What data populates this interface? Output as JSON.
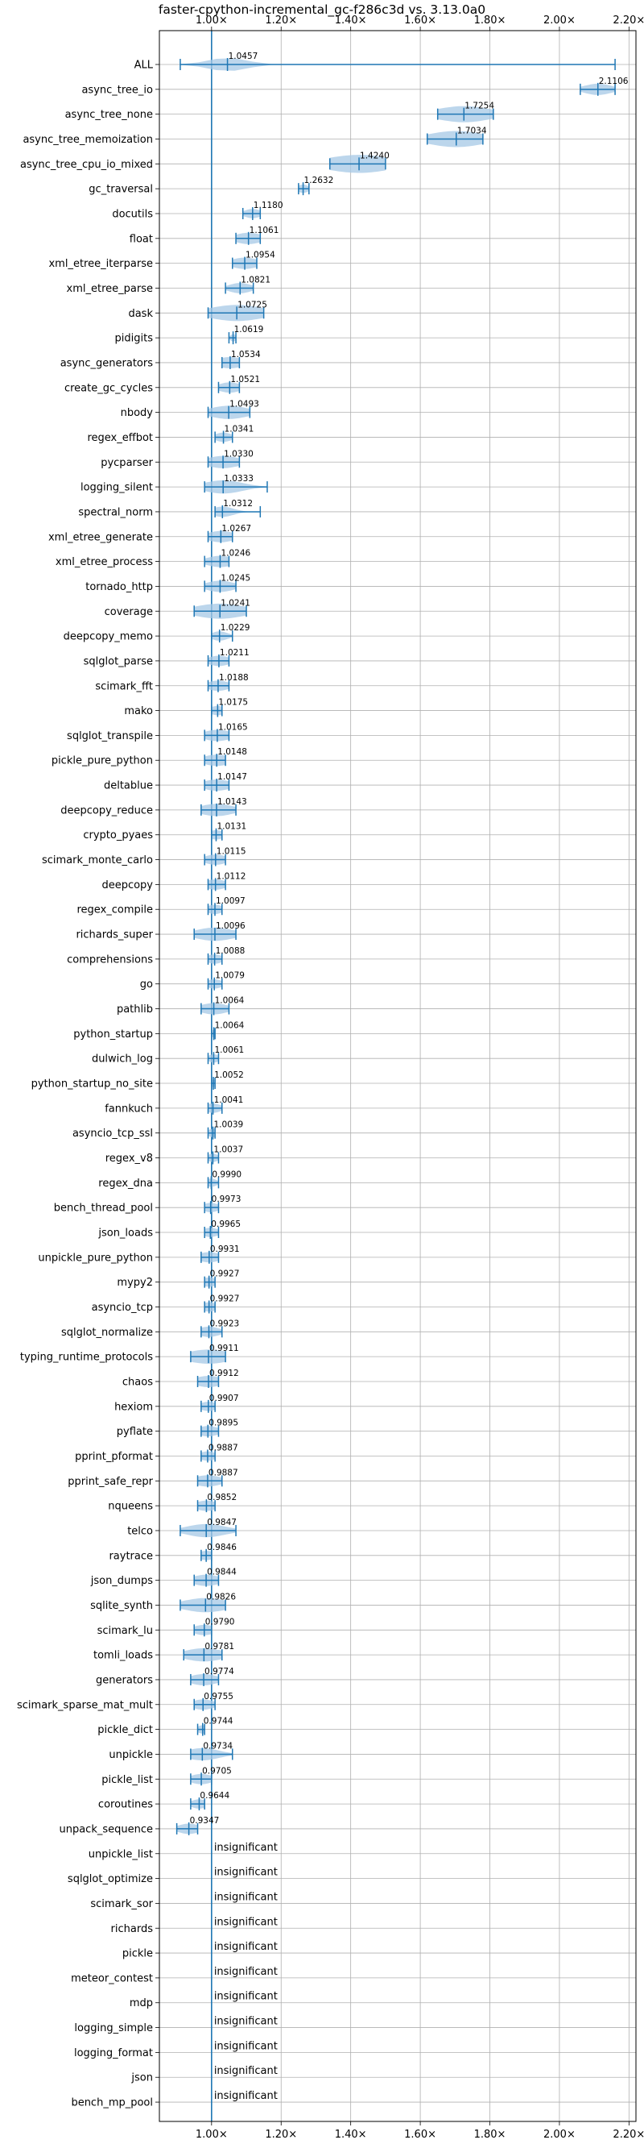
{
  "chart_data": {
    "type": "violin",
    "title": "faster-cpython-incremental_gc-f286c3d vs. 3.13.0a0",
    "xlim": [
      0.85,
      2.22
    ],
    "xticks": [
      "1.00×",
      "1.20×",
      "1.40×",
      "1.60×",
      "1.80×",
      "2.00×",
      "2.20×"
    ],
    "xtick_values": [
      1.0,
      1.2,
      1.4,
      1.6,
      1.8,
      2.0,
      2.2
    ],
    "reference_line": 1.0,
    "grid": true,
    "insignificant_label": "insignificant",
    "color": "#1f77b4",
    "fill_color": "#a6c8e6",
    "categories": [
      "ALL",
      "async_tree_io",
      "async_tree_none",
      "async_tree_memoization",
      "async_tree_cpu_io_mixed",
      "gc_traversal",
      "docutils",
      "float",
      "xml_etree_iterparse",
      "xml_etree_parse",
      "dask",
      "pidigits",
      "async_generators",
      "create_gc_cycles",
      "nbody",
      "regex_effbot",
      "pycparser",
      "logging_silent",
      "spectral_norm",
      "xml_etree_generate",
      "xml_etree_process",
      "tornado_http",
      "coverage",
      "deepcopy_memo",
      "sqlglot_parse",
      "scimark_fft",
      "mako",
      "sqlglot_transpile",
      "pickle_pure_python",
      "deltablue",
      "deepcopy_reduce",
      "crypto_pyaes",
      "scimark_monte_carlo",
      "deepcopy",
      "regex_compile",
      "richards_super",
      "comprehensions",
      "go",
      "pathlib",
      "python_startup",
      "dulwich_log",
      "python_startup_no_site",
      "fannkuch",
      "asyncio_tcp_ssl",
      "regex_v8",
      "regex_dna",
      "bench_thread_pool",
      "json_loads",
      "unpickle_pure_python",
      "mypy2",
      "asyncio_tcp",
      "sqlglot_normalize",
      "typing_runtime_protocols",
      "chaos",
      "hexiom",
      "pyflate",
      "pprint_pformat",
      "pprint_safe_repr",
      "nqueens",
      "telco",
      "raytrace",
      "json_dumps",
      "sqlite_synth",
      "scimark_lu",
      "tomli_loads",
      "generators",
      "scimark_sparse_mat_mult",
      "pickle_dict",
      "unpickle",
      "pickle_list",
      "coroutines",
      "unpack_sequence",
      "unpickle_list",
      "sqlglot_optimize",
      "scimark_sor",
      "richards",
      "pickle",
      "meteor_contest",
      "mdp",
      "logging_simple",
      "logging_format",
      "json",
      "bench_mp_pool"
    ],
    "values": [
      "1.0457",
      "2.1106",
      "1.7254",
      "1.7034",
      "1.4240",
      "1.2632",
      "1.1180",
      "1.1061",
      "1.0954",
      "1.0821",
      "1.0725",
      "1.0619",
      "1.0534",
      "1.0521",
      "1.0493",
      "1.0341",
      "1.0330",
      "1.0333",
      "1.0312",
      "1.0267",
      "1.0246",
      "1.0245",
      "1.0241",
      "1.0229",
      "1.0211",
      "1.0188",
      "1.0175",
      "1.0165",
      "1.0148",
      "1.0147",
      "1.0143",
      "1.0131",
      "1.0115",
      "1.0112",
      "1.0097",
      "1.0096",
      "1.0088",
      "1.0079",
      "1.0064",
      "1.0064",
      "1.0061",
      "1.0052",
      "1.0041",
      "1.0039",
      "1.0037",
      "0.9990",
      "0.9973",
      "0.9965",
      "0.9931",
      "0.9927",
      "0.9927",
      "0.9923",
      "0.9911",
      "0.9912",
      "0.9907",
      "0.9895",
      "0.9887",
      "0.9887",
      "0.9852",
      "0.9847",
      "0.9846",
      "0.9844",
      "0.9826",
      "0.9790",
      "0.9781",
      "0.9774",
      "0.9755",
      "0.9744",
      "0.9734",
      "0.9705",
      "0.9644",
      "0.9347",
      null,
      null,
      null,
      null,
      null,
      null,
      null,
      null,
      null,
      null,
      null
    ],
    "ranges": [
      [
        0.91,
        2.16
      ],
      [
        2.06,
        2.16
      ],
      [
        1.65,
        1.81
      ],
      [
        1.62,
        1.78
      ],
      [
        1.34,
        1.5
      ],
      [
        1.25,
        1.28
      ],
      [
        1.09,
        1.14
      ],
      [
        1.07,
        1.14
      ],
      [
        1.06,
        1.13
      ],
      [
        1.04,
        1.12
      ],
      [
        0.99,
        1.15
      ],
      [
        1.05,
        1.07
      ],
      [
        1.03,
        1.08
      ],
      [
        1.02,
        1.08
      ],
      [
        0.99,
        1.11
      ],
      [
        1.01,
        1.06
      ],
      [
        0.99,
        1.08
      ],
      [
        0.98,
        1.16
      ],
      [
        1.01,
        1.14
      ],
      [
        0.99,
        1.06
      ],
      [
        0.98,
        1.05
      ],
      [
        0.98,
        1.07
      ],
      [
        0.95,
        1.1
      ],
      [
        1.0,
        1.06
      ],
      [
        0.99,
        1.05
      ],
      [
        0.99,
        1.05
      ],
      [
        1.0,
        1.03
      ],
      [
        0.98,
        1.05
      ],
      [
        0.98,
        1.04
      ],
      [
        0.98,
        1.05
      ],
      [
        0.97,
        1.07
      ],
      [
        1.0,
        1.03
      ],
      [
        0.98,
        1.04
      ],
      [
        0.99,
        1.04
      ],
      [
        0.99,
        1.03
      ],
      [
        0.95,
        1.07
      ],
      [
        0.99,
        1.03
      ],
      [
        0.99,
        1.03
      ],
      [
        0.97,
        1.05
      ],
      [
        1.0,
        1.01
      ],
      [
        0.99,
        1.02
      ],
      [
        1.0,
        1.01
      ],
      [
        0.99,
        1.03
      ],
      [
        0.99,
        1.01
      ],
      [
        0.99,
        1.02
      ],
      [
        0.99,
        1.02
      ],
      [
        0.98,
        1.02
      ],
      [
        0.98,
        1.02
      ],
      [
        0.97,
        1.02
      ],
      [
        0.98,
        1.01
      ],
      [
        0.98,
        1.01
      ],
      [
        0.97,
        1.03
      ],
      [
        0.94,
        1.04
      ],
      [
        0.96,
        1.02
      ],
      [
        0.97,
        1.01
      ],
      [
        0.97,
        1.02
      ],
      [
        0.97,
        1.01
      ],
      [
        0.96,
        1.03
      ],
      [
        0.96,
        1.01
      ],
      [
        0.91,
        1.07
      ],
      [
        0.97,
        1.0
      ],
      [
        0.95,
        1.02
      ],
      [
        0.91,
        1.04
      ],
      [
        0.95,
        1.0
      ],
      [
        0.92,
        1.03
      ],
      [
        0.94,
        1.02
      ],
      [
        0.95,
        1.01
      ],
      [
        0.96,
        0.98
      ],
      [
        0.94,
        1.06
      ],
      [
        0.94,
        1.0
      ],
      [
        0.94,
        0.98
      ],
      [
        0.9,
        0.96
      ],
      null,
      null,
      null,
      null,
      null,
      null,
      null,
      null,
      null,
      null,
      null
    ],
    "widths": [
      0.07,
      0.05,
      0.1,
      0.1,
      0.12,
      0.02,
      0.03,
      0.05,
      0.05,
      0.04,
      0.1,
      0.01,
      0.05,
      0.04,
      0.07,
      0.03,
      0.06,
      0.07,
      0.04,
      0.05,
      0.05,
      0.05,
      0.09,
      0.03,
      0.04,
      0.04,
      0.03,
      0.05,
      0.05,
      0.05,
      0.06,
      0.03,
      0.04,
      0.04,
      0.03,
      0.07,
      0.03,
      0.03,
      0.05,
      0.01,
      0.02,
      0.01,
      0.03,
      0.02,
      0.02,
      0.02,
      0.03,
      0.03,
      0.04,
      0.03,
      0.03,
      0.04,
      0.08,
      0.05,
      0.03,
      0.04,
      0.03,
      0.05,
      0.04,
      0.07,
      0.03,
      0.05,
      0.08,
      0.04,
      0.07,
      0.05,
      0.04,
      0.02,
      0.06,
      0.04,
      0.03,
      0.04,
      null,
      null,
      null,
      null,
      null,
      null,
      null,
      null,
      null,
      null,
      null
    ]
  }
}
